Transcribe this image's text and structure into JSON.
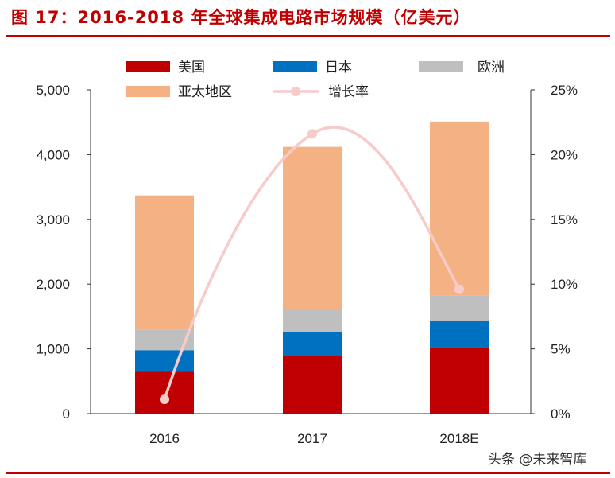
{
  "title": "图 17：2016-2018 年全球集成电路市场规模（亿美元）",
  "watermark": "头条 @未来智库",
  "colors": {
    "title": "#c00000",
    "us": "#c00000",
    "japan": "#0070c0",
    "europe": "#bfbfbf",
    "apac": "#f4b183",
    "growth": "#f8cbcb"
  },
  "chart_data": {
    "type": "bar",
    "stacked": true,
    "categories": [
      "2016",
      "2017",
      "2018E"
    ],
    "series": [
      {
        "name": "美国",
        "type": "bar",
        "axis": "left",
        "color": "#c00000",
        "values": [
          650,
          890,
          1020
        ]
      },
      {
        "name": "日本",
        "type": "bar",
        "axis": "left",
        "color": "#0070c0",
        "values": [
          330,
          370,
          410
        ]
      },
      {
        "name": "欧洲",
        "type": "bar",
        "axis": "left",
        "color": "#bfbfbf",
        "values": [
          320,
          360,
          390
        ]
      },
      {
        "name": "亚太地区",
        "type": "bar",
        "axis": "left",
        "color": "#f4b183",
        "values": [
          2070,
          2500,
          2690
        ]
      },
      {
        "name": "增长率",
        "type": "line",
        "axis": "right",
        "color": "#f8cbcb",
        "values": [
          1.1,
          21.6,
          9.6
        ],
        "unit": "%"
      }
    ],
    "ylim": [
      0,
      5000
    ],
    "yticks": [
      "5,000",
      "4,000",
      "3,000",
      "2,000",
      "1,000",
      "0"
    ],
    "y2lim": [
      0,
      25
    ],
    "y2ticks": [
      "25%",
      "20%",
      "15%",
      "10%",
      "5%",
      "0%"
    ],
    "xlabel": "",
    "ylabel": "",
    "grid": false,
    "legend_position": "top"
  }
}
